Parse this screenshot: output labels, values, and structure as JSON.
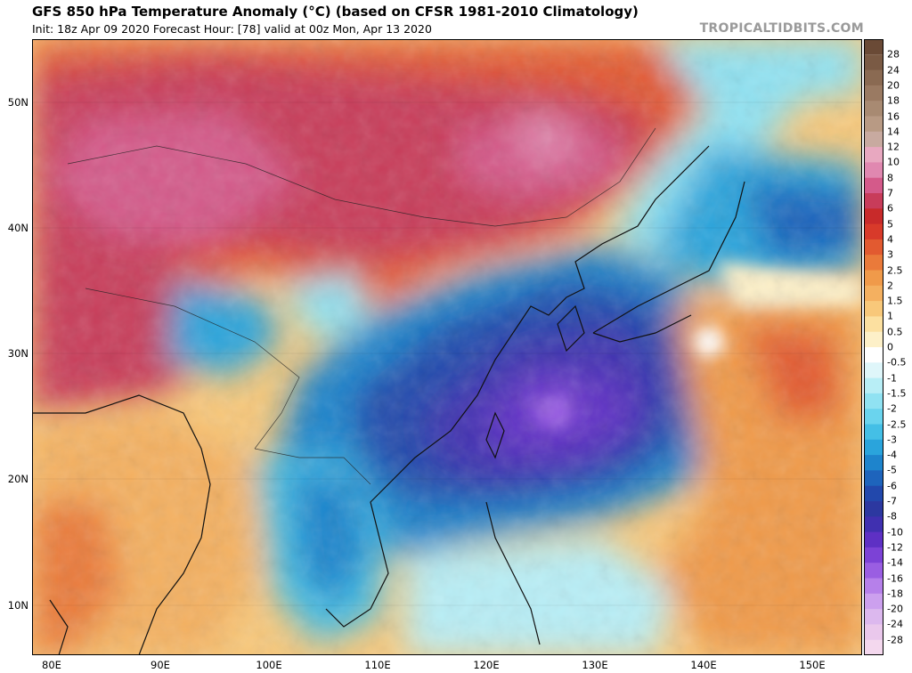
{
  "header": {
    "title": "GFS 850 hPa Temperature Anomaly (°C) (based on CFSR 1981-2010 Climatology)",
    "subtitle": "Init: 18z Apr 09 2020   Forecast Hour: [78]   valid at 00z Mon, Apr 13 2020",
    "brand": "TROPICALTIDBITS.COM"
  },
  "axes": {
    "lat_labels": [
      "50N",
      "40N",
      "30N",
      "20N",
      "10N"
    ],
    "lon_labels": [
      "80E",
      "90E",
      "100E",
      "110E",
      "120E",
      "130E",
      "140E",
      "150E"
    ]
  },
  "colorbar": {
    "labels": [
      "28",
      "24",
      "20",
      "18",
      "16",
      "14",
      "12",
      "10",
      "8",
      "7",
      "6",
      "5",
      "4",
      "3",
      "2.5",
      "2",
      "1.5",
      "1",
      "0.5",
      "0",
      "-0.5",
      "-1",
      "-1.5",
      "-2",
      "-2.5",
      "-3",
      "-4",
      "-5",
      "-6",
      "-7",
      "-8",
      "-10",
      "-12",
      "-14",
      "-16",
      "-18",
      "-20",
      "-24",
      "-28"
    ],
    "colors": [
      "#7a5a44",
      "#8a6a52",
      "#9a7a62",
      "#a88a72",
      "#b89a84",
      "#c8aaa0",
      "#e8a8c0",
      "#e088b0",
      "#d45a8a",
      "#c83c5a",
      "#c82a2a",
      "#d83a2a",
      "#e25a30",
      "#ea7a3a",
      "#f09a4a",
      "#f4b060",
      "#f8c87a",
      "#fce0a0",
      "#fdf0c8",
      "#ffffff",
      "#dff6fa",
      "#b8eef6",
      "#90e2f2",
      "#6ad4ee",
      "#44bfe6",
      "#2aa4dc",
      "#1e84cc",
      "#1e64bc",
      "#2248ac",
      "#2c38a0",
      "#4030b0",
      "#5e30c4",
      "#7c42d6",
      "#9a5ee2",
      "#b680ea",
      "#cca0ee",
      "#dcb8ee",
      "#eac8ec",
      "#f4d8ee"
    ]
  },
  "map": {
    "region": "East Asia and Western Pacific",
    "lat_range": [
      6,
      55
    ],
    "lon_range": [
      78,
      155
    ],
    "field": "850 hPa temperature anomaly"
  }
}
